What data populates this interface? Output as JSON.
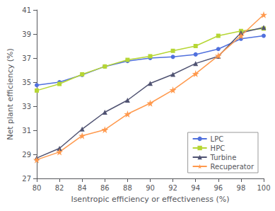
{
  "chart_data": {
    "type": "line",
    "x": [
      80,
      82,
      84,
      86,
      88,
      90,
      92,
      94,
      96,
      98,
      100
    ],
    "series": [
      {
        "name": "LPC",
        "marker": "circle",
        "values": [
          34.75,
          35.0,
          35.6,
          36.3,
          36.75,
          37.0,
          37.1,
          37.3,
          37.75,
          38.6,
          38.85
        ]
      },
      {
        "name": "HPC",
        "marker": "square",
        "values": [
          34.3,
          34.85,
          35.65,
          36.3,
          36.85,
          37.15,
          37.6,
          38.0,
          38.85,
          39.25,
          39.45
        ]
      },
      {
        "name": "Turbine",
        "marker": "triangle",
        "values": [
          28.7,
          29.5,
          31.1,
          32.5,
          33.5,
          34.9,
          35.65,
          36.55,
          37.15,
          39.1,
          39.55
        ]
      },
      {
        "name": "Recuperator",
        "marker": "star",
        "values": [
          28.55,
          29.2,
          30.55,
          31.05,
          32.35,
          33.25,
          34.35,
          35.7,
          37.2,
          38.85,
          40.6
        ]
      }
    ],
    "xlabel": "Isentropic efficiency or effectiveness (%)",
    "ylabel": "Net plant efficiency (%)",
    "xlim": [
      80,
      100
    ],
    "ylim": [
      27,
      41
    ],
    "xticks": [
      80,
      82,
      84,
      86,
      88,
      90,
      92,
      94,
      96,
      98,
      100
    ],
    "yticks": [
      27,
      29,
      31,
      33,
      35,
      37,
      39,
      41
    ],
    "grid": false,
    "legend": "lower right"
  }
}
